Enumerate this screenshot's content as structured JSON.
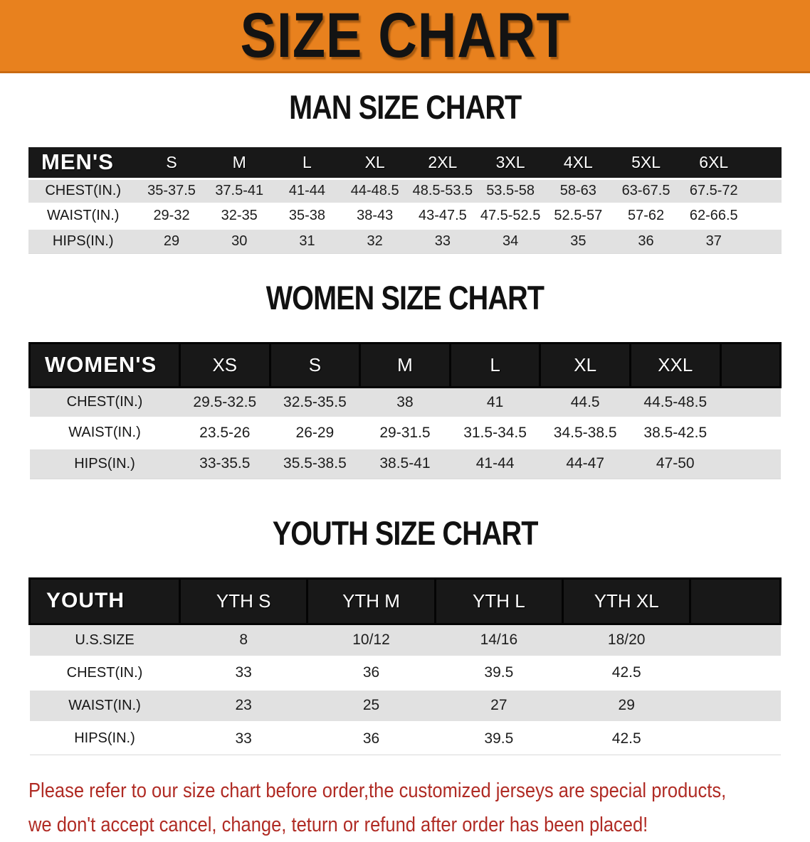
{
  "banner": {
    "title": "SIZE CHART",
    "bg_color": "#E8811E",
    "text_color": "#131313"
  },
  "sections": [
    {
      "title": "MAN SIZE CHART",
      "table": {
        "label": "MEN'S",
        "columns": [
          "S",
          "M",
          "L",
          "XL",
          "2XL",
          "3XL",
          "4XL",
          "5XL",
          "6XL"
        ],
        "rows": [
          {
            "label": "CHEST(IN.)",
            "values": [
              "35-37.5",
              "37.5-41",
              "41-44",
              "44-48.5",
              "48.5-53.5",
              "53.5-58",
              "58-63",
              "63-67.5",
              "67.5-72"
            ]
          },
          {
            "label": "WAIST(IN.)",
            "values": [
              "29-32",
              "32-35",
              "35-38",
              "38-43",
              "43-47.5",
              "47.5-52.5",
              "52.5-57",
              "57-62",
              "62-66.5"
            ]
          },
          {
            "label": "HIPS(IN.)",
            "values": [
              "29",
              "30",
              "31",
              "32",
              "33",
              "34",
              "35",
              "36",
              "37"
            ]
          }
        ]
      }
    },
    {
      "title": "WOMEN SIZE CHART",
      "table": {
        "label": "WOMEN'S",
        "columns": [
          "XS",
          "S",
          "M",
          "L",
          "XL",
          "XXL"
        ],
        "rows": [
          {
            "label": "CHEST(IN.)",
            "values": [
              "29.5-32.5",
              "32.5-35.5",
              "38",
              "41",
              "44.5",
              "44.5-48.5"
            ]
          },
          {
            "label": "WAIST(IN.)",
            "values": [
              "23.5-26",
              "26-29",
              "29-31.5",
              "31.5-34.5",
              "34.5-38.5",
              "38.5-42.5"
            ]
          },
          {
            "label": "HIPS(IN.)",
            "values": [
              "33-35.5",
              "35.5-38.5",
              "38.5-41",
              "41-44",
              "44-47",
              "47-50"
            ]
          }
        ]
      }
    },
    {
      "title": "YOUTH SIZE CHART",
      "table": {
        "label": "YOUTH",
        "columns": [
          "YTH S",
          "YTH M",
          "YTH L",
          "YTH XL"
        ],
        "rows": [
          {
            "label": "U.S.SIZE",
            "values": [
              "8",
              "10/12",
              "14/16",
              "18/20"
            ]
          },
          {
            "label": "CHEST(IN.)",
            "values": [
              "33",
              "36",
              "39.5",
              "42.5"
            ]
          },
          {
            "label": "WAIST(IN.)",
            "values": [
              "23",
              "25",
              "27",
              "29"
            ]
          },
          {
            "label": "HIPS(IN.)",
            "values": [
              "33",
              "36",
              "39.5",
              "42.5"
            ]
          }
        ]
      }
    }
  ],
  "footer": {
    "text_color": "#B02B24",
    "lines": [
      "Please refer to our size chart before order,the customized jerseys are special products,",
      "we don't accept cancel, change, teturn or refund after order has been placed!"
    ]
  },
  "colors": {
    "banner_orange": "#E8811E",
    "header_bar_black": "#181818",
    "stripe_gray": "#E1E1E1",
    "disclaimer_red": "#B02B24"
  }
}
